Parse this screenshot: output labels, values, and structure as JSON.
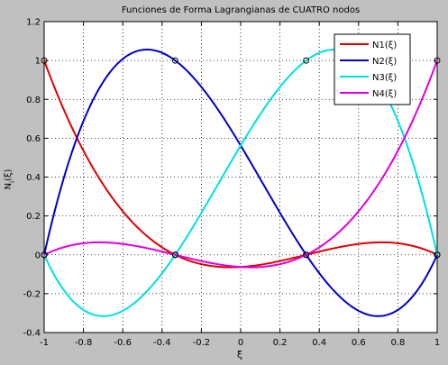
{
  "chart_data": {
    "type": "line",
    "title": "Funciones de Forma Lagrangianas de CUATRO nodos",
    "xlabel": "ξ",
    "ylabel": "N_i(ξ)",
    "xlim": [
      -1,
      1
    ],
    "ylim": [
      -0.4,
      1.2
    ],
    "xticks": [
      -1,
      -0.8,
      -0.6,
      -0.4,
      -0.2,
      0,
      0.2,
      0.4,
      0.6,
      0.8,
      1
    ],
    "xtick_labels": [
      "-1",
      "-0.8",
      "-0.6",
      "-0.4",
      "-0.2",
      "0",
      "0.2",
      "0.4",
      "0.6",
      "0.8",
      "1"
    ],
    "yticks": [
      -0.4,
      -0.2,
      0,
      0.2,
      0.4,
      0.6,
      0.8,
      1,
      1.2
    ],
    "ytick_labels": [
      "-0.4",
      "-0.2",
      "0",
      "0.2",
      "0.4",
      "0.6",
      "0.8",
      "1",
      "1.2"
    ],
    "grid": true,
    "grid_style": "dotted",
    "legend_position": "top-right",
    "background": "#c0c0c0",
    "axes_background": "#ffffff",
    "nodes": [
      -1,
      -0.3333,
      0.3333,
      1
    ],
    "x": [
      -1,
      -0.9,
      -0.8,
      -0.7,
      -0.6,
      -0.5,
      -0.4,
      -0.3,
      -0.2,
      -0.1,
      0,
      0.1,
      0.2,
      0.3,
      0.4,
      0.5,
      0.6,
      0.7,
      0.8,
      0.9,
      1
    ],
    "series": [
      {
        "name": "N1(ξ)",
        "color": "#e00000",
        "values": [
          1,
          0.7706,
          0.576,
          0.4144,
          0.284,
          0.1831,
          0.1102,
          0.0633,
          0.024,
          0.0031,
          -0.0625,
          -0.0529,
          -0.032,
          0.0009,
          0.0364,
          0.0469,
          0.06,
          0.0659,
          0.0576,
          0.0456,
          0
        ]
      },
      {
        "name": "N2(ξ)",
        "color": "#0000c8",
        "values": [
          0,
          0.4151,
          0.72,
          0.9231,
          1.0311,
          1.0547,
          1.008,
          0.8978,
          0.744,
          0.5569,
          0.5625,
          0.3616,
          0.168,
          -0.0116,
          -0.1638,
          -0.2344,
          -0.288,
          -0.3116,
          -0.288,
          -0.2003,
          0
        ]
      },
      {
        "name": "N3(ξ)",
        "color": "#00e0e0",
        "values": [
          0,
          -0.2003,
          -0.288,
          -0.3116,
          -0.288,
          -0.2344,
          -0.1638,
          -0.0116,
          0.168,
          0.3616,
          0.5625,
          0.7569,
          0.744,
          0.8978,
          1.008,
          1.0547,
          1.0311,
          0.9231,
          0.72,
          0.4151,
          0
        ]
      },
      {
        "name": "N4(ξ)",
        "color": "#e000e0",
        "values": [
          0,
          0.0456,
          0.0576,
          0.0659,
          0.06,
          0.0469,
          0.0364,
          0.0009,
          -0.032,
          -0.0529,
          -0.0625,
          -0.0531,
          -0.024,
          0.0063,
          0.1102,
          0.1831,
          0.284,
          0.4144,
          0.576,
          0.7706,
          1
        ]
      }
    ]
  }
}
